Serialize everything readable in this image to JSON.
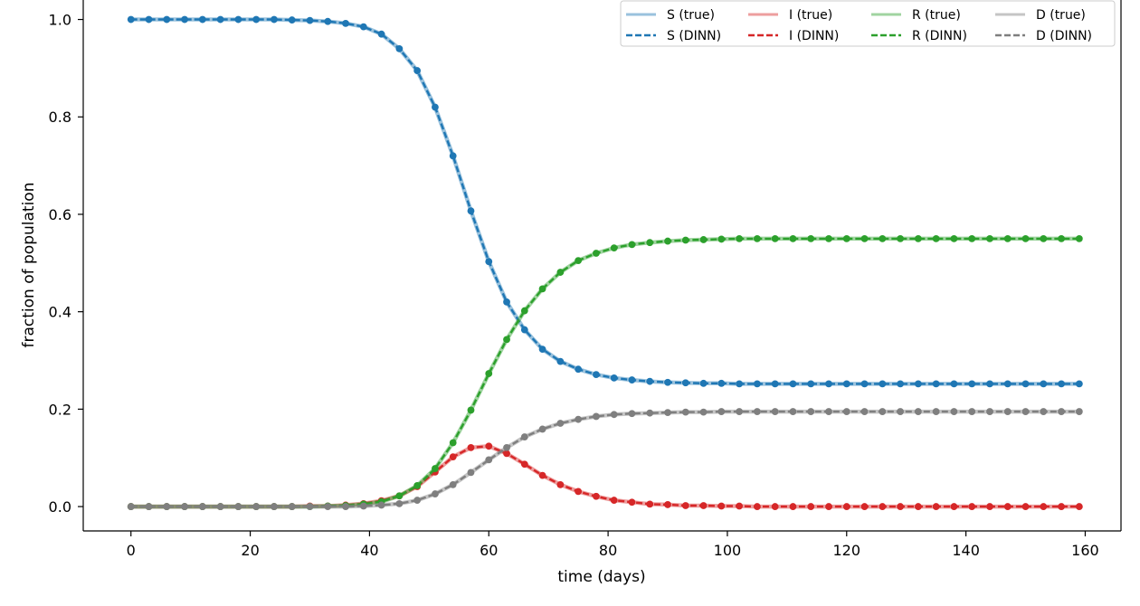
{
  "chart_data": {
    "type": "line",
    "title": "",
    "xlabel": "time (days)",
    "ylabel": "fraction of population",
    "xlim": [
      -8,
      166
    ],
    "ylim": [
      -0.05,
      1.04
    ],
    "xticks": [
      0,
      20,
      40,
      60,
      80,
      100,
      120,
      140,
      160
    ],
    "yticks": [
      0.0,
      0.2,
      0.4,
      0.6,
      0.8,
      1.0
    ],
    "grid": false,
    "legend": {
      "placement": "top-right",
      "columns": 4
    },
    "x": [
      0,
      3,
      6,
      9,
      12,
      15,
      18,
      21,
      24,
      27,
      30,
      33,
      36,
      39,
      42,
      45,
      48,
      51,
      54,
      57,
      60,
      63,
      66,
      69,
      72,
      75,
      78,
      81,
      84,
      87,
      90,
      93,
      96,
      99,
      102,
      105,
      108,
      111,
      114,
      117,
      120,
      123,
      126,
      129,
      132,
      135,
      138,
      141,
      144,
      147,
      150,
      153,
      156,
      159
    ],
    "series": [
      {
        "name": "S",
        "true_label": "S (true)",
        "dinn_label": "S (DINN)",
        "color": "#1f77b4",
        "values": [
          1.0,
          1.0,
          1.0,
          1.0,
          1.0,
          1.0,
          1.0,
          1.0,
          1.0,
          0.999,
          0.998,
          0.996,
          0.992,
          0.985,
          0.97,
          0.94,
          0.895,
          0.82,
          0.72,
          0.607,
          0.503,
          0.42,
          0.363,
          0.323,
          0.298,
          0.282,
          0.271,
          0.264,
          0.26,
          0.257,
          0.255,
          0.254,
          0.253,
          0.253,
          0.252,
          0.252,
          0.252,
          0.252,
          0.252,
          0.252,
          0.252,
          0.252,
          0.252,
          0.252,
          0.252,
          0.252,
          0.252,
          0.252,
          0.252,
          0.252,
          0.252,
          0.252,
          0.252,
          0.252
        ]
      },
      {
        "name": "I",
        "true_label": "I (true)",
        "dinn_label": "I (DINN)",
        "color": "#d62728",
        "values": [
          0.0,
          0.0,
          0.0,
          0.0,
          0.0,
          0.0,
          0.0,
          0.0,
          0.0,
          0.0,
          0.001,
          0.001,
          0.003,
          0.006,
          0.012,
          0.022,
          0.041,
          0.071,
          0.102,
          0.121,
          0.124,
          0.109,
          0.087,
          0.064,
          0.045,
          0.031,
          0.021,
          0.013,
          0.009,
          0.005,
          0.004,
          0.002,
          0.002,
          0.001,
          0.001,
          0.0,
          0.0,
          0.0,
          0.0,
          0.0,
          0.0,
          0.0,
          0.0,
          0.0,
          0.0,
          0.0,
          0.0,
          0.0,
          0.0,
          0.0,
          0.0,
          0.0,
          0.0,
          0.0
        ]
      },
      {
        "name": "R",
        "true_label": "R (true)",
        "dinn_label": "R (DINN)",
        "color": "#2ca02c",
        "values": [
          0.0,
          0.0,
          0.0,
          0.0,
          0.0,
          0.0,
          0.0,
          0.0,
          0.0,
          0.0,
          0.0,
          0.001,
          0.002,
          0.005,
          0.01,
          0.022,
          0.043,
          0.078,
          0.131,
          0.198,
          0.273,
          0.343,
          0.402,
          0.447,
          0.481,
          0.505,
          0.52,
          0.531,
          0.538,
          0.542,
          0.545,
          0.547,
          0.548,
          0.549,
          0.55,
          0.55,
          0.55,
          0.55,
          0.55,
          0.55,
          0.55,
          0.55,
          0.55,
          0.55,
          0.55,
          0.55,
          0.55,
          0.55,
          0.55,
          0.55,
          0.55,
          0.55,
          0.55,
          0.55
        ]
      },
      {
        "name": "D",
        "true_label": "D (true)",
        "dinn_label": "D (DINN)",
        "color": "#7f7f7f",
        "values": [
          0.0,
          0.0,
          0.0,
          0.0,
          0.0,
          0.0,
          0.0,
          0.0,
          0.0,
          0.0,
          0.0,
          0.0,
          0.0,
          0.001,
          0.003,
          0.006,
          0.013,
          0.026,
          0.045,
          0.07,
          0.096,
          0.121,
          0.143,
          0.159,
          0.171,
          0.179,
          0.185,
          0.189,
          0.191,
          0.192,
          0.193,
          0.194,
          0.194,
          0.195,
          0.195,
          0.195,
          0.195,
          0.195,
          0.195,
          0.195,
          0.195,
          0.195,
          0.195,
          0.195,
          0.195,
          0.195,
          0.195,
          0.195,
          0.195,
          0.195,
          0.195,
          0.195,
          0.195,
          0.195
        ]
      }
    ]
  }
}
